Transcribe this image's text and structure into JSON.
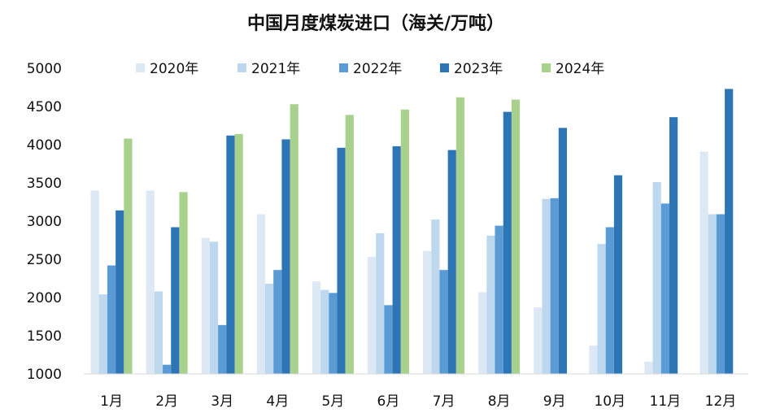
{
  "chart_data": {
    "type": "bar",
    "title": "中国月度煤炭进口（海关/万吨）",
    "xlabel": "",
    "ylabel": "",
    "categories": [
      "1月",
      "2月",
      "3月",
      "4月",
      "5月",
      "6月",
      "7月",
      "8月",
      "9月",
      "10月",
      "11月",
      "12月"
    ],
    "ylim": [
      1000,
      5000
    ],
    "yticks": [
      1000,
      1500,
      2000,
      2500,
      3000,
      3500,
      4000,
      4500,
      5000
    ],
    "grid": false,
    "legend_position": "top",
    "series": [
      {
        "name": "2020年",
        "color": "#dde8f5",
        "values": [
          3400,
          3400,
          2780,
          3090,
          2210,
          2530,
          2610,
          2070,
          1870,
          1370,
          1160,
          3910
        ]
      },
      {
        "name": "2021年",
        "color": "#bdd7ee",
        "values": [
          2040,
          2080,
          2730,
          2180,
          2100,
          2840,
          3020,
          2810,
          3290,
          2700,
          3510,
          3090
        ]
      },
      {
        "name": "2022年",
        "color": "#5b9bd5",
        "values": [
          2420,
          1120,
          1640,
          2360,
          2060,
          1900,
          2360,
          2940,
          3300,
          2920,
          3230,
          3090
        ]
      },
      {
        "name": "2023年",
        "color": "#2e75b6",
        "values": [
          3140,
          2920,
          4120,
          4070,
          3960,
          3980,
          3930,
          4430,
          4220,
          3600,
          4360,
          4730
        ]
      },
      {
        "name": "2024年",
        "color": "#a9d18e",
        "values": [
          4080,
          3380,
          4140,
          4530,
          4390,
          4460,
          4620,
          4590,
          null,
          null,
          null,
          null
        ]
      }
    ]
  }
}
